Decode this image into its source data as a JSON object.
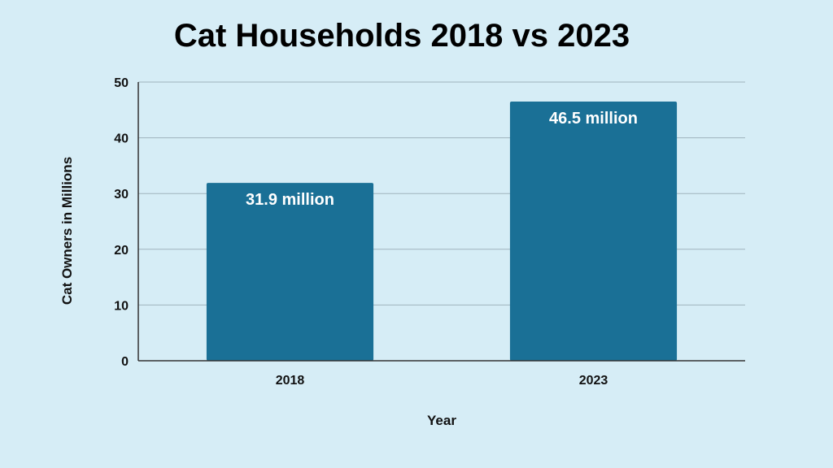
{
  "chart_data": {
    "type": "bar",
    "title": "Cat Households 2018 vs 2023",
    "xlabel": "Year",
    "ylabel": "Cat Owners in Millions",
    "categories": [
      "2018",
      "2023"
    ],
    "values": [
      31.9,
      46.5
    ],
    "data_labels": [
      "31.9 million",
      "46.5 million"
    ],
    "ylim": [
      0,
      50
    ],
    "yticks": [
      0,
      10,
      20,
      30,
      40,
      50
    ],
    "grid": true,
    "legend": "none",
    "colors": {
      "bar": "#1a7096",
      "background": "#d6edf6",
      "grid": "#9fb3bc",
      "axis": "#333333",
      "text": "#111111",
      "data_label": "#ffffff"
    }
  }
}
